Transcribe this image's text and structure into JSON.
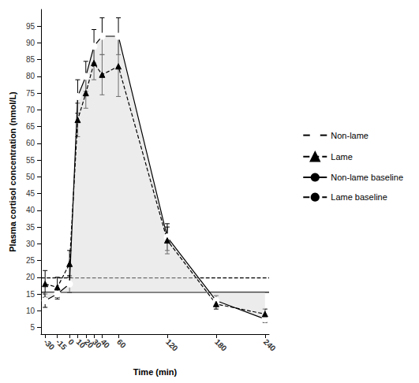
{
  "chart_data": {
    "type": "line",
    "x_label": "Time (min)",
    "y_label": "Plasma cortisol concentration (nmol/L)",
    "x": [
      -30,
      -15,
      0,
      10,
      20,
      30,
      40,
      60,
      120,
      180,
      240
    ],
    "series": [
      {
        "name": "Non-lame",
        "color": "#000000",
        "marker": "open_circle",
        "line_style": "solid",
        "values": [
          13,
          15,
          18,
          74,
          80,
          89,
          92,
          92,
          32,
          13,
          7.5
        ],
        "errors": [
          2,
          1.5,
          2.5,
          5,
          4.5,
          5,
          5.5,
          5.5,
          4,
          1.5,
          1
        ]
      },
      {
        "name": "Lame",
        "color": "#000000",
        "marker": "triangle",
        "line_style": "dashed",
        "values": [
          18,
          17,
          24,
          67,
          75,
          84,
          80.5,
          83,
          31,
          12,
          9
        ],
        "errors": [
          4,
          3,
          4,
          5,
          4.5,
          5,
          6,
          9,
          4,
          1.5,
          1.5
        ]
      }
    ],
    "baselines": [
      {
        "name": "Non-lame baseline",
        "value": 15.5,
        "color": "#000000",
        "line_style": "solid"
      },
      {
        "name": "Lame baseline",
        "value": 19.8,
        "color": "#000000",
        "line_style": "dashed"
      }
    ],
    "xlim": [
      -35,
      245
    ],
    "xticks": [
      -30,
      -15,
      0,
      10,
      20,
      30,
      40,
      60,
      120,
      180,
      240
    ],
    "ylim": [
      3,
      100
    ],
    "yticks": [
      5,
      10,
      15,
      20,
      25,
      30,
      35,
      40,
      45,
      50,
      55,
      60,
      65,
      70,
      75,
      80,
      85,
      90,
      95
    ],
    "grid": false,
    "legend": "right"
  }
}
